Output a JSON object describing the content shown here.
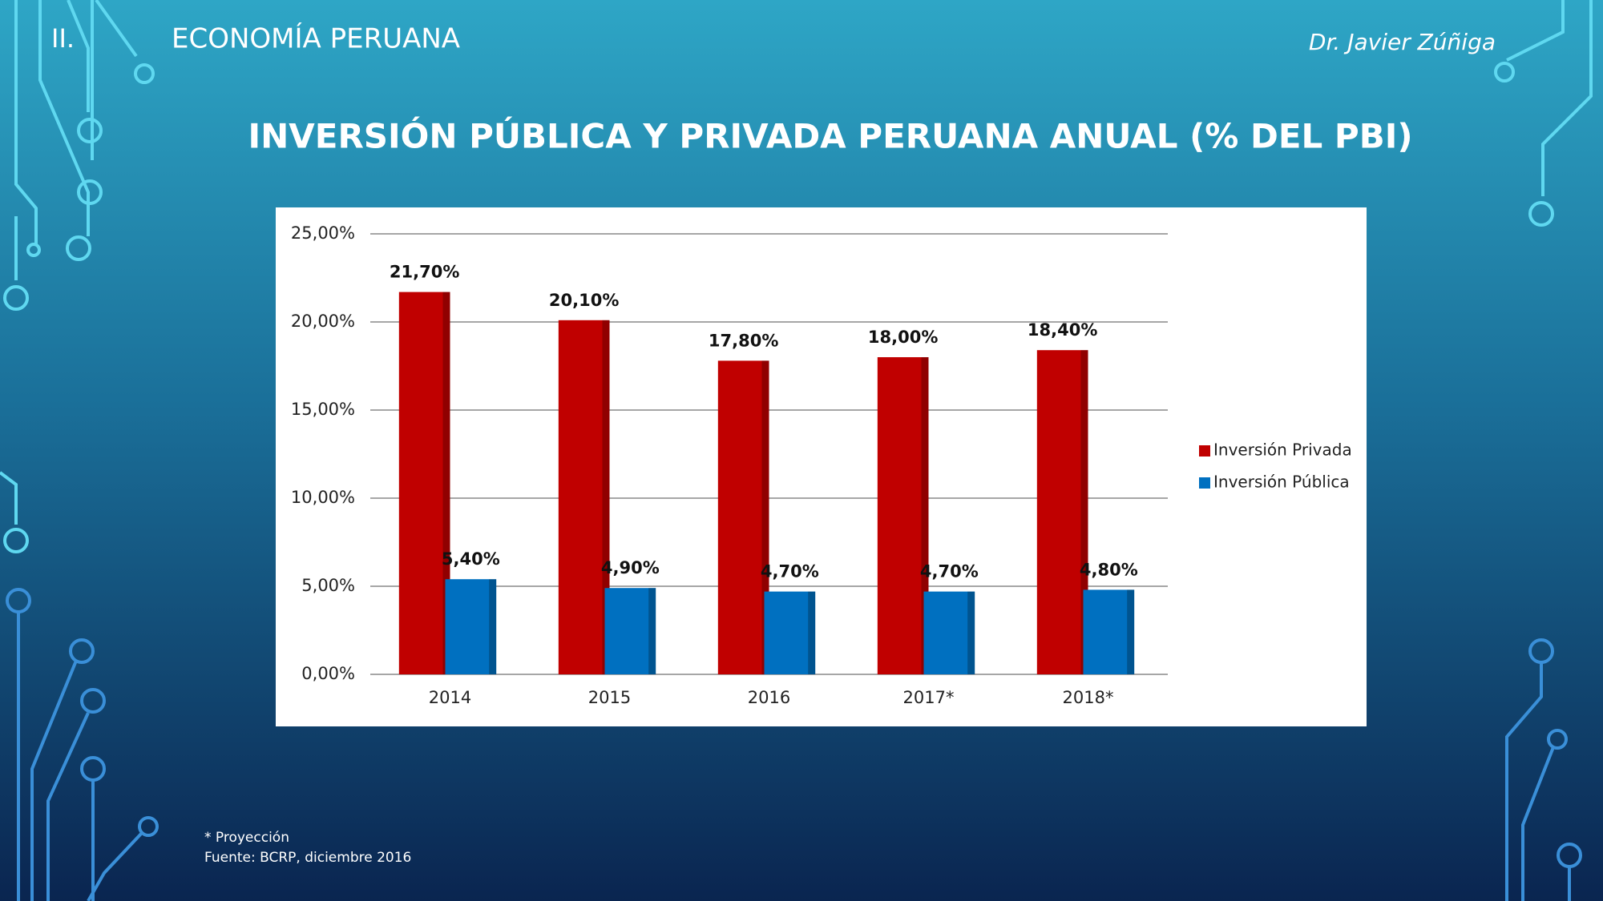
{
  "slide": {
    "section_number": "II.",
    "section_title": "ECONOMÍA PERUANA",
    "author": "Dr. Javier Zúñiga",
    "footnote": "* Proyección",
    "source": "Fuente: BCRP, diciembre 2016"
  },
  "chart_data": {
    "type": "bar",
    "title": "INVERSIÓN PÚBLICA Y PRIVADA PERUANA ANUAL (% DEL PBI)",
    "categories": [
      "2014",
      "2015",
      "2016",
      "2017*",
      "2018*"
    ],
    "series": [
      {
        "name": "Inversión Privada",
        "color": "#c00000",
        "values": [
          21.7,
          20.1,
          17.8,
          18.0,
          18.4
        ],
        "value_labels": [
          "21,70%",
          "20,10%",
          "17,80%",
          "18,00%",
          "18,40%"
        ]
      },
      {
        "name": "Inversión Pública",
        "color": "#0070c0",
        "values": [
          5.4,
          4.9,
          4.7,
          4.7,
          4.8
        ],
        "value_labels": [
          "5,40%",
          "4,90%",
          "4,70%",
          "4,70%",
          "4,80%"
        ]
      }
    ],
    "ylim": [
      0,
      25
    ],
    "yticks": [
      {
        "value": 0,
        "label": "0,00%"
      },
      {
        "value": 5,
        "label": "5,00%"
      },
      {
        "value": 10,
        "label": "10,00%"
      },
      {
        "value": 15,
        "label": "15,00%"
      },
      {
        "value": 20,
        "label": "20,00%"
      },
      {
        "value": 25,
        "label": "25,00%"
      }
    ],
    "grid": true,
    "legend": "right"
  }
}
